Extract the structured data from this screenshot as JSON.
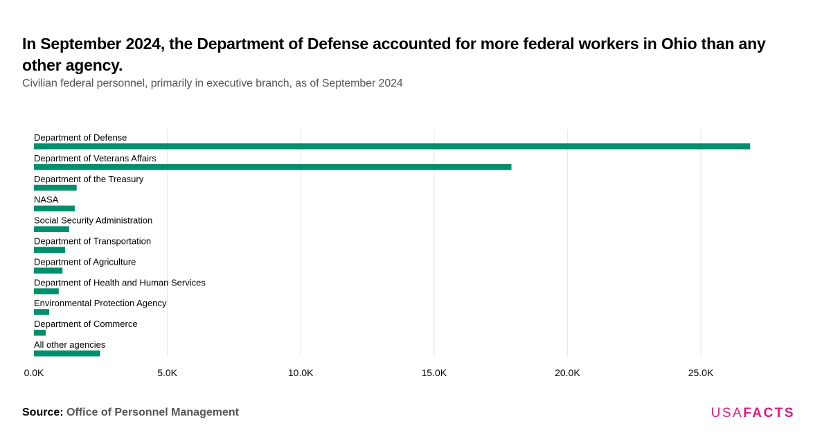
{
  "title": "In September 2024, the Department of Defense accounted for more federal workers in Ohio than any other agency.",
  "subtitle": "Civilian federal personnel, primarily in executive branch, as of September 2024",
  "source": {
    "label": "Source:",
    "text": "Office of Personnel Management"
  },
  "logo": {
    "part1": "USA",
    "part2": "FACTS"
  },
  "colors": {
    "bar": "#008f6b",
    "grid": "#e5e5e5",
    "logo": "#e0197d"
  },
  "chart_data": {
    "type": "bar",
    "orientation": "horizontal",
    "categories": [
      "Department of Defense",
      "Department of Veterans Affairs",
      "Department of the Treasury",
      "NASA",
      "Social Security Administration",
      "Department of Transportation",
      "Department of Agriculture",
      "Department of Health and Human Services",
      "Environmental Protection Agency",
      "Department of Commerce",
      "All other agencies"
    ],
    "values": [
      26850,
      17900,
      1600,
      1530,
      1320,
      1170,
      1070,
      930,
      570,
      440,
      2480
    ],
    "xlim": [
      0,
      28000
    ],
    "x_ticks": [
      0,
      5000,
      10000,
      15000,
      20000,
      25000
    ],
    "x_tick_labels": [
      "0.0K",
      "5.0K",
      "10.0K",
      "15.0K",
      "20.0K",
      "25.0K"
    ],
    "grid": true,
    "legend": "none"
  }
}
